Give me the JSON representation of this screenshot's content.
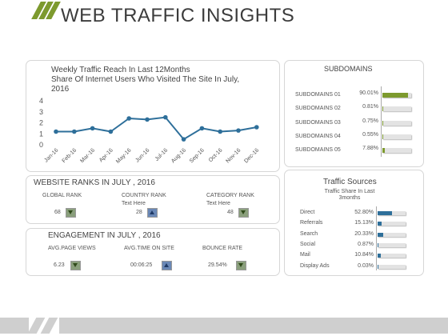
{
  "header": {
    "title": "WEB TRAFFIC INSIGHTS"
  },
  "chart": {
    "title_line1": "Weekly Traffic Reach In Last 12Months",
    "title_line2": "Share Of Internet Users Who Visited The Site In July,",
    "title_line3": "2016"
  },
  "chart_data": {
    "type": "line",
    "categories": [
      "Jan-16",
      "Feb-16",
      "Mar-16",
      "Apr-16",
      "May-16",
      "Jun-16",
      "Jul-16",
      "Aug-16",
      "Sep-16",
      "Oct-16",
      "Nov-16",
      "Dec-16"
    ],
    "values": [
      1.2,
      1.2,
      1.5,
      1.2,
      2.4,
      2.3,
      2.5,
      0.5,
      1.5,
      1.2,
      1.3,
      1.6
    ],
    "ylim": [
      0,
      4
    ],
    "yticks": [
      "0",
      "1",
      "2",
      "3",
      "4"
    ],
    "color": "#2e6f9a"
  },
  "ranks": {
    "title": "WEBSITE RANKS IN JULY , 2016",
    "items": [
      {
        "label": "GLOBAL RANK",
        "sub": "",
        "value": "68",
        "trend": "down"
      },
      {
        "label": "COUNTRY RANK",
        "sub": "Text Here",
        "value": "28",
        "trend": "up"
      },
      {
        "label": "CATEGORY RANK",
        "sub": "Text Here",
        "value": "48",
        "trend": "down"
      }
    ]
  },
  "engagement": {
    "title": "ENGAGEMENT IN JULY , 2016",
    "items": [
      {
        "label": "AVG.PAGE VIEWS",
        "value": "6.23",
        "trend": "down"
      },
      {
        "label": "AVG.TIME ON SITE",
        "value": "00:06:25",
        "trend": "up"
      },
      {
        "label": "BOUNCE RATE",
        "value": "29.54%",
        "trend": "down"
      }
    ]
  },
  "subdomains": {
    "title": "SUBDOMAINS",
    "color": "#7d9a2e",
    "items": [
      {
        "label": "SUBDOMAINS 01",
        "value": "90.01%",
        "fraction": 0.9001
      },
      {
        "label": "SUBDOMAINS 02",
        "value": "0.81%",
        "fraction": 0.0081
      },
      {
        "label": "SUBDOMAINS 03",
        "value": "0.75%",
        "fraction": 0.0075
      },
      {
        "label": "SUBDOMAINS 04",
        "value": "0.55%",
        "fraction": 0.0055
      },
      {
        "label": "SUBDOMAINS 05",
        "value": "7.88%",
        "fraction": 0.0788
      }
    ]
  },
  "traffic": {
    "title": "Traffic Sources",
    "subtitle_line1": "Traffic Share In Last",
    "subtitle_line2": "3months",
    "color": "#2e6f9a",
    "items": [
      {
        "label": "Direct",
        "value": "52.80%",
        "fraction": 0.528
      },
      {
        "label": "Referrals",
        "value": "15.13%",
        "fraction": 0.1513
      },
      {
        "label": "Search",
        "value": "20.33%",
        "fraction": 0.2033
      },
      {
        "label": "Social",
        "value": "0.87%",
        "fraction": 0.0087
      },
      {
        "label": "Mail",
        "value": "10.84%",
        "fraction": 0.1084
      },
      {
        "label": "Display Ads",
        "value": "0.03%",
        "fraction": 0.0003
      }
    ]
  }
}
